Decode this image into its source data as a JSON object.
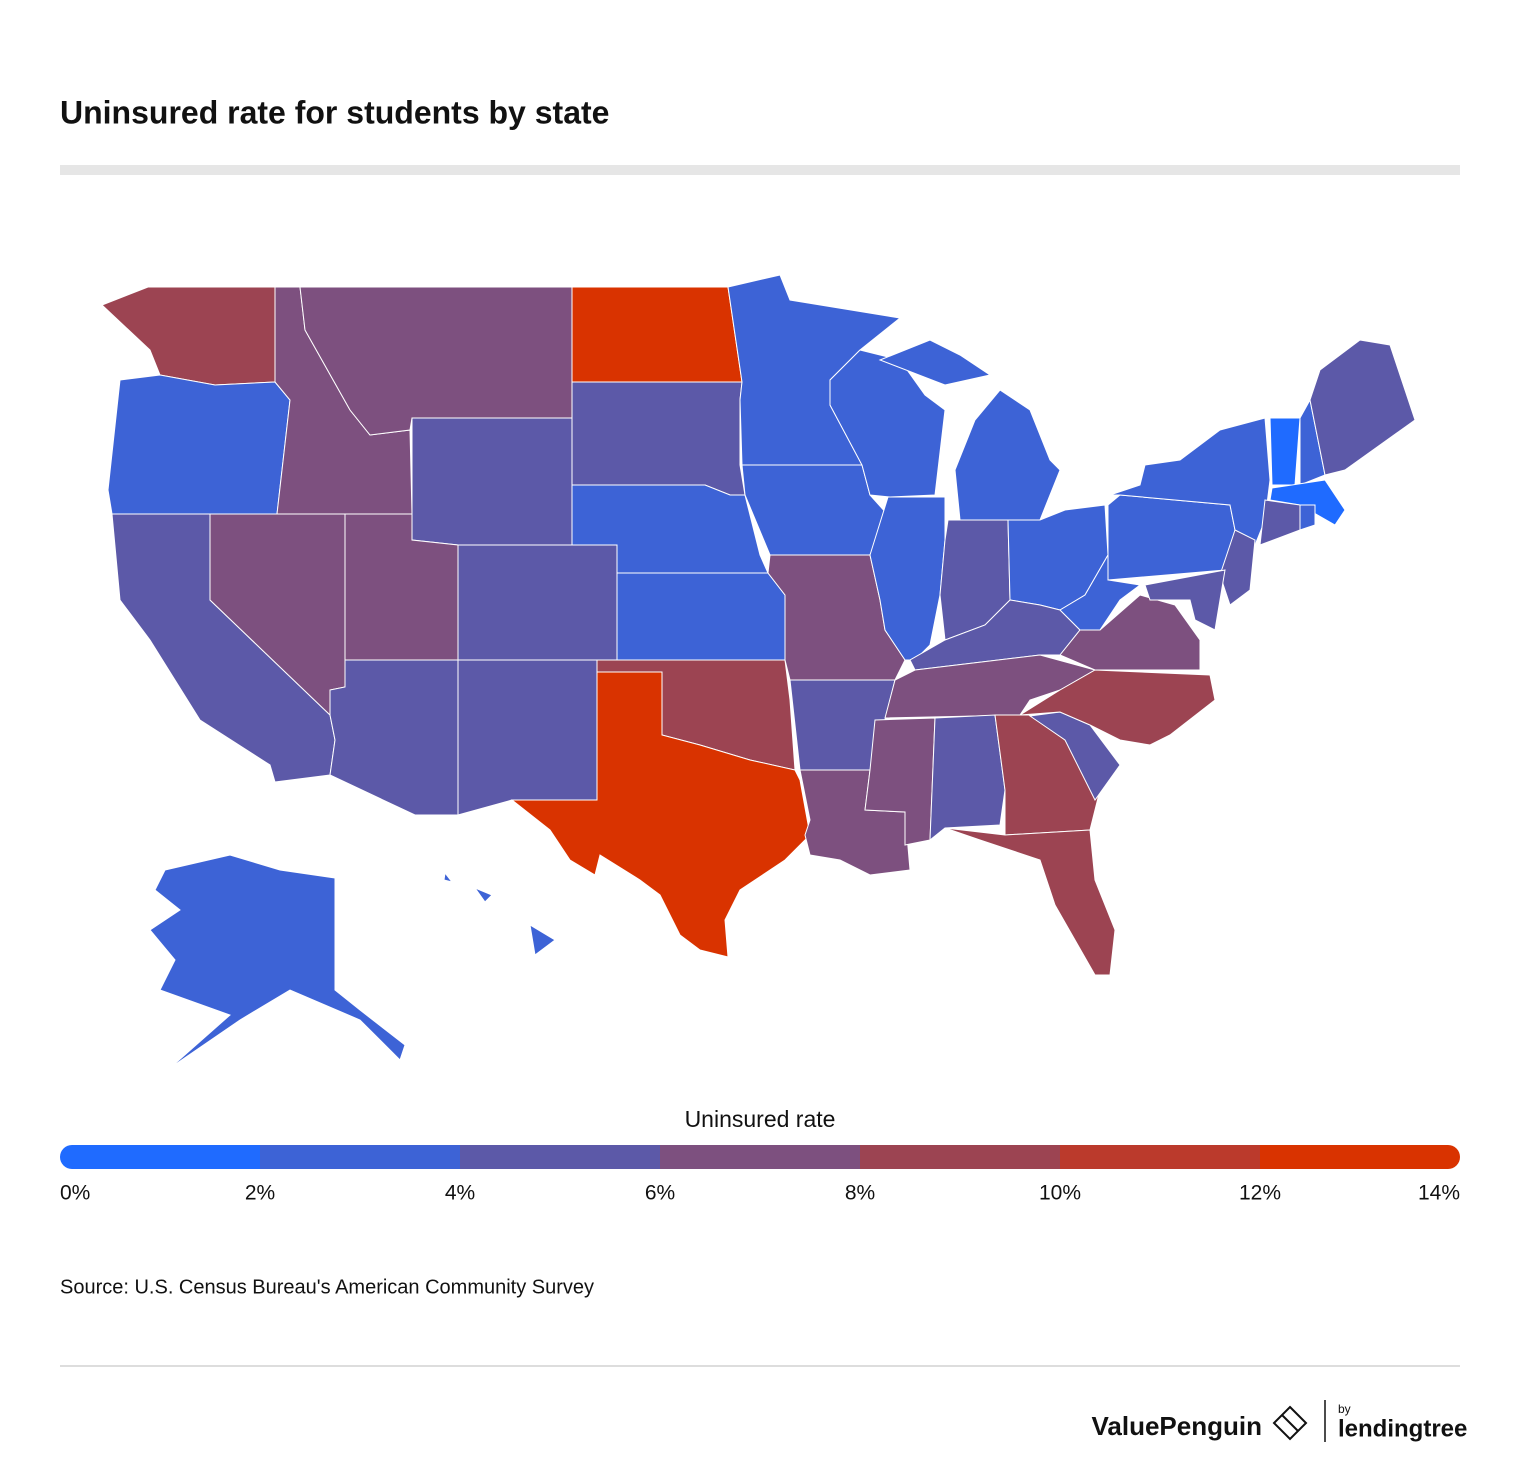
{
  "chart_data": {
    "type": "choropleth",
    "title": "Uninsured rate for students by state",
    "legend_title": "Uninsured rate",
    "scale": {
      "ticks": [
        {
          "value": 0,
          "label": "0%"
        },
        {
          "value": 2,
          "label": "2%"
        },
        {
          "value": 4,
          "label": "4%"
        },
        {
          "value": 6,
          "label": "6%"
        },
        {
          "value": 8,
          "label": "8%"
        },
        {
          "value": 10,
          "label": "10%"
        },
        {
          "value": 12,
          "label": "12%"
        },
        {
          "value": 14,
          "label": "14%"
        }
      ],
      "colors": [
        "#1f6bff",
        "#3d63d6",
        "#5c59a8",
        "#7d507f",
        "#9c4452",
        "#bb3a2c",
        "#d93300"
      ]
    },
    "values": [
      9,
      3,
      5,
      7,
      7,
      7,
      5,
      7,
      5,
      5,
      5,
      13,
      5,
      3,
      3,
      9,
      13,
      3,
      3,
      7,
      5,
      7,
      3,
      3,
      3,
      5,
      3,
      5,
      7,
      7,
      5,
      9,
      9,
      5,
      9,
      7,
      3,
      3,
      3,
      1,
      3,
      5,
      1,
      5,
      3,
      5,
      5,
      3,
      3
    ],
    "source": "Source: U.S. Census Bureau's American Community Survey"
  },
  "footer": {
    "brand": "ValuePenguin",
    "by": "by",
    "partner": "lendingtree"
  }
}
